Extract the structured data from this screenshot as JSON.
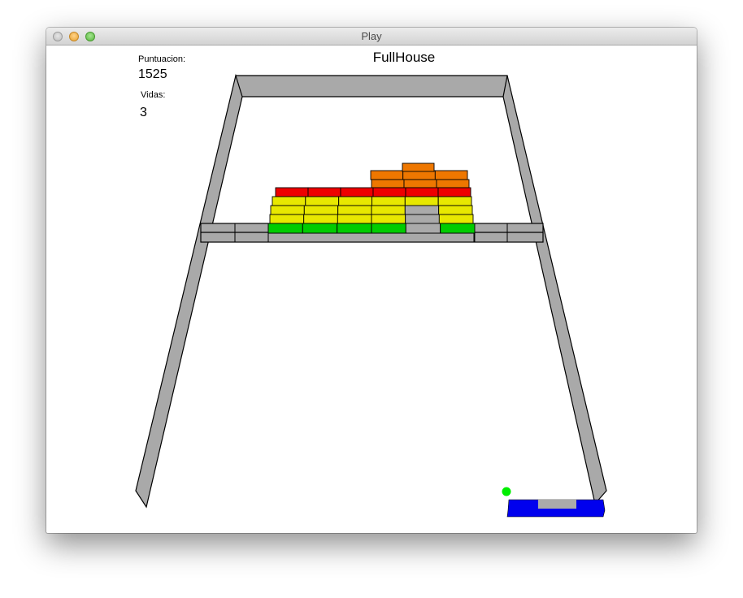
{
  "window": {
    "title": "Play"
  },
  "hud": {
    "score_label": "Puntuacion:",
    "score": "1525",
    "lives_label": "Vidas:",
    "lives": "3",
    "level_name": "FullHouse"
  },
  "colors": {
    "wall": "#a9a9a9",
    "outline": "#000000",
    "red": "#ee0000",
    "orange": "#ee7700",
    "yellow": "#e8e800",
    "green": "#00cc00",
    "gray_brick": "#aaaaaa",
    "paddle": "#0000ee",
    "paddle_top": "#aaaaaa",
    "ball": "#00ee00"
  },
  "bricks": {
    "rows": [
      [
        "empty",
        "empty",
        "empty",
        "orange",
        "orange",
        "orange"
      ],
      [
        "empty",
        "empty",
        "empty",
        "orange",
        "orange",
        "orange"
      ],
      [
        "red",
        "red",
        "red",
        "red",
        "red",
        "red"
      ],
      [
        "yellow",
        "yellow",
        "yellow",
        "yellow",
        "yellow",
        "yellow"
      ],
      [
        "yellow",
        "yellow",
        "yellow",
        "yellow",
        "gray",
        "yellow"
      ],
      [
        "yellow",
        "yellow",
        "yellow",
        "yellow",
        "gray",
        "yellow"
      ],
      [
        "green",
        "green",
        "green",
        "green",
        "gray",
        "green"
      ]
    ],
    "top_brick": "orange"
  }
}
